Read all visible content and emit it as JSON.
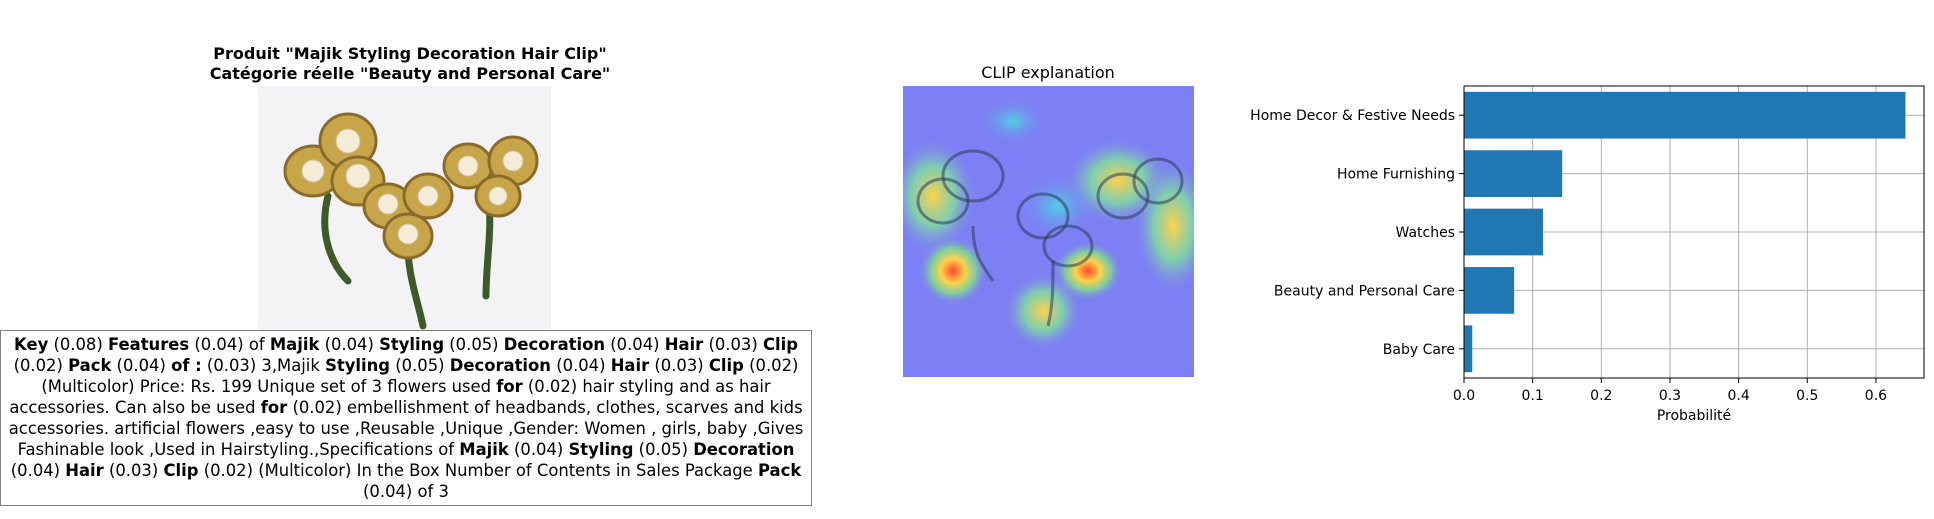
{
  "product_panel": {
    "title_line1": "Produit \"Majik Styling Decoration Hair Clip\"",
    "title_line2": "Catégorie réelle \"Beauty and Personal Care\"",
    "description_segments": [
      {
        "t": "Key",
        "b": true
      },
      {
        "t": " (0.08) ",
        "b": false
      },
      {
        "t": "Features",
        "b": true
      },
      {
        "t": " (0.04) of ",
        "b": false
      },
      {
        "t": "Majik",
        "b": true
      },
      {
        "t": " (0.04) ",
        "b": false
      },
      {
        "t": "Styling",
        "b": true
      },
      {
        "t": " (0.05) ",
        "b": false
      },
      {
        "t": "Decoration",
        "b": true
      },
      {
        "t": " (0.04) ",
        "b": false
      },
      {
        "t": "Hair",
        "b": true
      },
      {
        "t": " (0.03) ",
        "b": false
      },
      {
        "t": "Clip",
        "b": true
      },
      {
        "t": " (0.02) ",
        "b": false
      },
      {
        "t": "Pack",
        "b": true
      },
      {
        "t": " (0.04) ",
        "b": false
      },
      {
        "t": "of :",
        "b": true
      },
      {
        "t": "  (0.03) 3,Majik ",
        "b": false
      },
      {
        "t": "Styling",
        "b": true
      },
      {
        "t": " (0.05) ",
        "b": false
      },
      {
        "t": "Decoration",
        "b": true
      },
      {
        "t": " (0.04) ",
        "b": false
      },
      {
        "t": "Hair",
        "b": true
      },
      {
        "t": " (0.03) ",
        "b": false
      },
      {
        "t": "Clip",
        "b": true
      },
      {
        "t": " (0.02) (Multicolor) Price: Rs. 199 Unique set of 3 flowers used ",
        "b": false
      },
      {
        "t": "for",
        "b": true
      },
      {
        "t": " (0.02) hair styling and as hair accessories. Can also be used ",
        "b": false
      },
      {
        "t": "for",
        "b": true
      },
      {
        "t": " (0.02) embellishment of headbands, clothes, scarves and kids accessories. artificial flowers ,easy to use ,Reusable ,Unique ,Gender: Women , girls, baby ,Gives Fashinable look ,Used in Hairstyling.,Specifications of ",
        "b": false
      },
      {
        "t": "Majik",
        "b": true
      },
      {
        "t": " (0.04) ",
        "b": false
      },
      {
        "t": "Styling",
        "b": true
      },
      {
        "t": " (0.05) ",
        "b": false
      },
      {
        "t": "Decoration",
        "b": true
      },
      {
        "t": " (0.04) ",
        "b": false
      },
      {
        "t": "Hair",
        "b": true
      },
      {
        "t": " (0.03) ",
        "b": false
      },
      {
        "t": "Clip",
        "b": true
      },
      {
        "t": " (0.02) (Multicolor) In the Box Number of Contents in Sales Package ",
        "b": false
      },
      {
        "t": "Pack",
        "b": true
      },
      {
        "t": " (0.04) of 3",
        "b": false
      }
    ]
  },
  "clip_panel": {
    "title": "CLIP explanation"
  },
  "colors": {
    "bar": "#1f77b4",
    "grid": "#b0b0b0",
    "heat_low": "#7d7ff5",
    "heat_high": "#ff4a2a"
  },
  "chart_data": {
    "type": "bar",
    "orientation": "horizontal",
    "categories": [
      "Home Decor & Festive Needs",
      "Home Furnishing",
      "Watches",
      "Beauty and Personal Care",
      "Baby Care"
    ],
    "values": [
      0.643,
      0.143,
      0.115,
      0.073,
      0.012
    ],
    "xlabel": "Probabilité",
    "ylabel": "",
    "title": "",
    "xlim": [
      0,
      0.67
    ],
    "xticks": [
      0.0,
      0.1,
      0.2,
      0.3,
      0.4,
      0.5,
      0.6
    ],
    "xtick_labels": [
      "0.0",
      "0.1",
      "0.2",
      "0.3",
      "0.4",
      "0.5",
      "0.6"
    ],
    "grid": true
  }
}
